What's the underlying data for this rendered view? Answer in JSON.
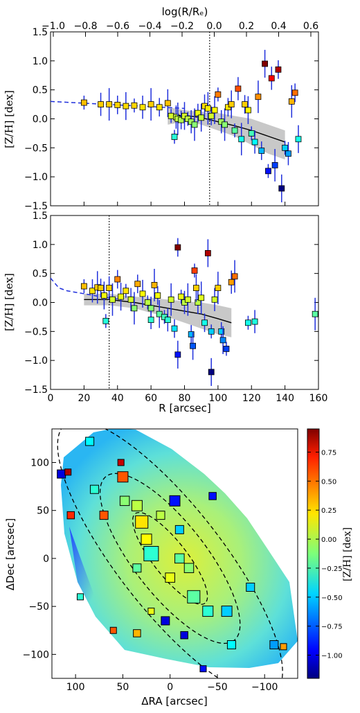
{
  "chart_data": [
    {
      "type": "scatter",
      "title": "",
      "xlabel": "",
      "top_axis_label": "log(R/Rₑ)",
      "top_ticks": [
        "−1.0",
        "−0.8",
        "−0.6",
        "−0.4",
        "−0.2",
        "0.0",
        "0.2",
        "0.4",
        "0.6"
      ],
      "ylabel": "[Z/H] [dex]",
      "xlim": [
        0,
        160
      ],
      "ylim": [
        -1.5,
        1.5
      ],
      "yticks": [
        "−1.5",
        "−1.0",
        "−0.5",
        "0.0",
        "0.5",
        "1.0",
        "1.5"
      ],
      "vline_x": 95,
      "points": [
        [
          20,
          0.28
        ],
        [
          30,
          0.25
        ],
        [
          35,
          0.25
        ],
        [
          40,
          0.24
        ],
        [
          45,
          0.22
        ],
        [
          50,
          0.23
        ],
        [
          55,
          0.2
        ],
        [
          60,
          0.25
        ],
        [
          65,
          0.2
        ],
        [
          70,
          0.27
        ],
        [
          72,
          0.05
        ],
        [
          75,
          0.03
        ],
        [
          76,
          0.0
        ],
        [
          78,
          -0.02
        ],
        [
          80,
          0.05
        ],
        [
          82,
          0.0
        ],
        [
          84,
          -0.05
        ],
        [
          86,
          -0.1
        ],
        [
          88,
          0.1
        ],
        [
          90,
          0.02
        ],
        [
          74,
          -0.31
        ],
        [
          92,
          0.22
        ],
        [
          94,
          0.18
        ],
        [
          96,
          0.05
        ],
        [
          98,
          0.15
        ],
        [
          100,
          0.42
        ],
        [
          102,
          -0.05
        ],
        [
          104,
          -0.1
        ],
        [
          106,
          0.2
        ],
        [
          108,
          0.25
        ],
        [
          110,
          -0.2
        ],
        [
          112,
          0.52
        ],
        [
          114,
          -0.35
        ],
        [
          116,
          0.25
        ],
        [
          118,
          0.15
        ],
        [
          120,
          -0.25
        ],
        [
          122,
          -0.4
        ],
        [
          124,
          0.38
        ],
        [
          126,
          -0.55
        ],
        [
          128,
          0.95
        ],
        [
          130,
          -0.9
        ],
        [
          132,
          0.7
        ],
        [
          134,
          -0.8
        ],
        [
          136,
          0.85
        ],
        [
          138,
          -1.2
        ],
        [
          140,
          -0.5
        ],
        [
          142,
          -0.6
        ],
        [
          144,
          0.3
        ],
        [
          146,
          0.45
        ],
        [
          148,
          -0.35
        ]
      ],
      "trend": [
        [
          70,
          0.05
        ],
        [
          80,
          0.06
        ],
        [
          90,
          0.02
        ],
        [
          100,
          -0.05
        ],
        [
          110,
          -0.12
        ],
        [
          120,
          -0.2
        ],
        [
          130,
          -0.3
        ],
        [
          140,
          -0.4
        ]
      ],
      "band_upper": [
        [
          70,
          0.2
        ],
        [
          80,
          0.15
        ],
        [
          90,
          0.12
        ],
        [
          100,
          0.1
        ],
        [
          110,
          0.05
        ],
        [
          120,
          0.0
        ],
        [
          130,
          -0.1
        ],
        [
          140,
          -0.2
        ]
      ],
      "band_lower": [
        [
          70,
          -0.1
        ],
        [
          80,
          -0.05
        ],
        [
          90,
          -0.1
        ],
        [
          100,
          -0.2
        ],
        [
          110,
          -0.3
        ],
        [
          120,
          -0.45
        ],
        [
          130,
          -0.6
        ],
        [
          140,
          -0.7
        ]
      ],
      "model_curve": [
        [
          0,
          0.3
        ],
        [
          20,
          0.27
        ],
        [
          40,
          0.24
        ],
        [
          60,
          0.21
        ],
        [
          80,
          0.18
        ]
      ]
    },
    {
      "type": "scatter",
      "title": "",
      "xlabel": "R [arcsec]",
      "ylabel": "[Z/H] [dex]",
      "xlim": [
        0,
        160
      ],
      "ylim": [
        -1.5,
        1.5
      ],
      "xticks": [
        "0",
        "20",
        "40",
        "60",
        "80",
        "100",
        "120",
        "140",
        "160"
      ],
      "yticks": [
        "−1.5",
        "−1.0",
        "−0.5",
        "0.0",
        "0.5",
        "1.0",
        "1.5"
      ],
      "vline_x": 35,
      "points": [
        [
          20,
          0.28
        ],
        [
          25,
          0.2
        ],
        [
          28,
          0.26
        ],
        [
          30,
          0.25
        ],
        [
          32,
          0.12
        ],
        [
          33,
          -0.32
        ],
        [
          35,
          0.25
        ],
        [
          37,
          0.05
        ],
        [
          40,
          0.4
        ],
        [
          42,
          0.1
        ],
        [
          45,
          0.2
        ],
        [
          48,
          0.05
        ],
        [
          50,
          -0.1
        ],
        [
          52,
          0.32
        ],
        [
          55,
          0.15
        ],
        [
          58,
          0.0
        ],
        [
          60,
          -0.1
        ],
        [
          62,
          0.3
        ],
        [
          64,
          0.12
        ],
        [
          65,
          -0.2
        ],
        [
          68,
          -0.25
        ],
        [
          70,
          -0.3
        ],
        [
          72,
          0.05
        ],
        [
          74,
          -0.45
        ],
        [
          76,
          -0.9
        ],
        [
          78,
          0.1
        ],
        [
          80,
          0.0
        ],
        [
          82,
          0.05
        ],
        [
          84,
          -0.55
        ],
        [
          85,
          -0.75
        ],
        [
          86,
          0.55
        ],
        [
          88,
          0.0
        ],
        [
          90,
          0.08
        ],
        [
          92,
          -0.35
        ],
        [
          94,
          0.85
        ],
        [
          96,
          -0.5
        ],
        [
          98,
          0.05
        ],
        [
          100,
          0.25
        ],
        [
          102,
          -0.5
        ],
        [
          103,
          -0.65
        ],
        [
          105,
          -0.8
        ],
        [
          108,
          0.35
        ],
        [
          110,
          0.45
        ],
        [
          76,
          0.95
        ],
        [
          96,
          -1.2
        ],
        [
          118,
          -0.35
        ],
        [
          122,
          -0.33
        ],
        [
          158,
          -0.2
        ],
        [
          60,
          -0.3
        ],
        [
          87,
          0.25
        ]
      ],
      "trend": [
        [
          20,
          0.05
        ],
        [
          35,
          0.05
        ],
        [
          50,
          0.0
        ],
        [
          60,
          -0.05
        ],
        [
          70,
          -0.1
        ],
        [
          80,
          -0.15
        ],
        [
          90,
          -0.2
        ],
        [
          100,
          -0.28
        ],
        [
          108,
          -0.35
        ]
      ],
      "band_upper": [
        [
          20,
          0.15
        ],
        [
          35,
          0.15
        ],
        [
          50,
          0.1
        ],
        [
          60,
          0.08
        ],
        [
          70,
          0.05
        ],
        [
          80,
          0.02
        ],
        [
          90,
          0.0
        ],
        [
          100,
          -0.05
        ],
        [
          108,
          -0.1
        ]
      ],
      "band_lower": [
        [
          20,
          -0.05
        ],
        [
          35,
          -0.05
        ],
        [
          50,
          -0.1
        ],
        [
          60,
          -0.18
        ],
        [
          70,
          -0.25
        ],
        [
          80,
          -0.35
        ],
        [
          90,
          -0.45
        ],
        [
          100,
          -0.55
        ],
        [
          108,
          -0.6
        ]
      ],
      "model_curve": [
        [
          0,
          0.42
        ],
        [
          5,
          0.25
        ],
        [
          10,
          0.2
        ],
        [
          20,
          0.15
        ],
        [
          30,
          0.1
        ],
        [
          40,
          0.06
        ]
      ]
    },
    {
      "type": "heatmap",
      "title": "",
      "xlabel": "ΔRA [arcsec]",
      "ylabel": "ΔDec [arcsec]",
      "xlim": [
        125,
        -135
      ],
      "ylim": [
        -125,
        135
      ],
      "xticks": [
        "100",
        "50",
        "0",
        "−50",
        "−100"
      ],
      "yticks": [
        "−100",
        "−50",
        "0",
        "50",
        "100"
      ],
      "colorbar_label": "[Z/H] [dex]",
      "colorbar_range": [
        -1.2,
        0.95
      ],
      "colorbar_ticks": [
        "−1.00",
        "−0.75",
        "−0.50",
        "−0.25",
        "0.00",
        "0.25",
        "0.50",
        "0.75"
      ],
      "ellipses": [
        {
          "cx": 0,
          "cy": 0,
          "a": 180,
          "b": 55
        },
        {
          "cx": 0,
          "cy": 0,
          "a": 110,
          "b": 38
        },
        {
          "cx": 0,
          "cy": 0,
          "a": 60,
          "b": 18
        }
      ],
      "squares": [
        [
          115,
          88,
          -1.0,
          8
        ],
        [
          108,
          90,
          0.85,
          6
        ],
        [
          85,
          122,
          -0.4,
          8
        ],
        [
          52,
          100,
          0.8,
          6
        ],
        [
          50,
          85,
          0.5,
          10
        ],
        [
          35,
          55,
          0.0,
          10
        ],
        [
          30,
          38,
          0.2,
          12
        ],
        [
          25,
          20,
          0.15,
          10
        ],
        [
          20,
          5,
          -0.3,
          14
        ],
        [
          10,
          45,
          0.0,
          8
        ],
        [
          -5,
          60,
          -0.9,
          10
        ],
        [
          -10,
          30,
          -0.5,
          8
        ],
        [
          -20,
          -10,
          -0.1,
          9
        ],
        [
          -25,
          -40,
          -0.2,
          12
        ],
        [
          -40,
          -55,
          -0.3,
          10
        ],
        [
          -60,
          -55,
          -0.5,
          10
        ],
        [
          -65,
          -90,
          -0.4,
          8
        ],
        [
          -85,
          -30,
          -0.5,
          8
        ],
        [
          -110,
          -90,
          -0.6,
          8
        ],
        [
          -120,
          -92,
          0.35,
          6
        ],
        [
          105,
          45,
          0.6,
          7
        ],
        [
          80,
          72,
          -0.3,
          8
        ],
        [
          70,
          45,
          0.5,
          8
        ],
        [
          48,
          60,
          -0.1,
          9
        ],
        [
          35,
          -10,
          -0.2,
          8
        ],
        [
          5,
          -65,
          -1.0,
          8
        ],
        [
          -15,
          -80,
          -1.0,
          7
        ],
        [
          -45,
          65,
          -0.9,
          7
        ],
        [
          0,
          -20,
          0.1,
          9
        ],
        [
          -10,
          0,
          -0.2,
          9
        ],
        [
          60,
          -75,
          0.5,
          6
        ],
        [
          35,
          -78,
          0.3,
          7
        ],
        [
          20,
          -55,
          0.1,
          6
        ],
        [
          95,
          -40,
          -0.3,
          6
        ],
        [
          -35,
          -115,
          -0.9,
          6
        ]
      ]
    }
  ]
}
